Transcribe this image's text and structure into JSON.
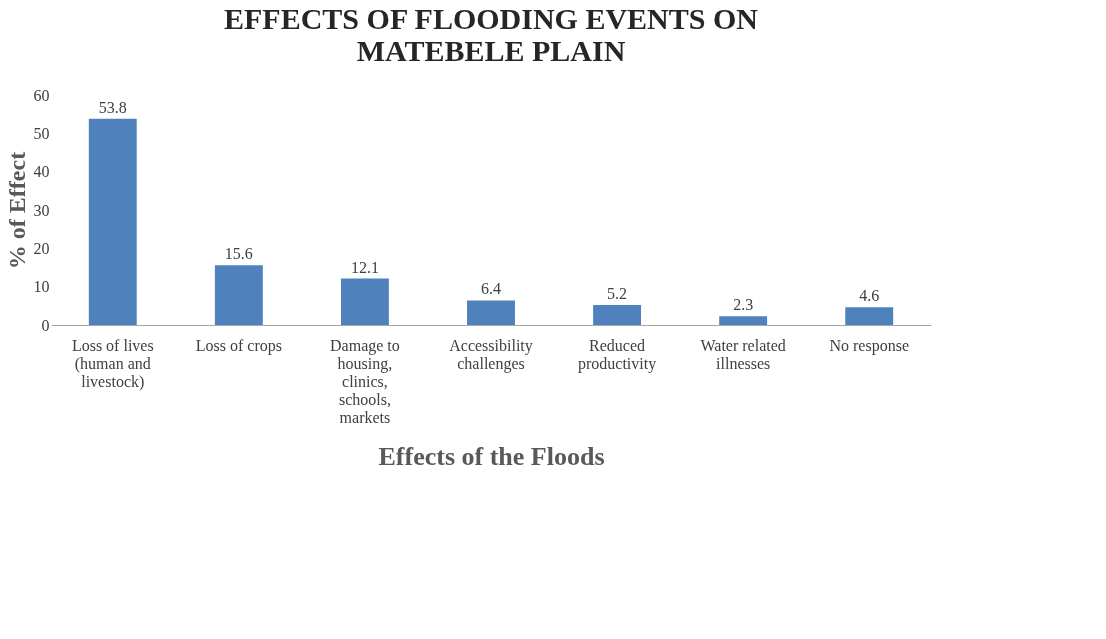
{
  "chart_data": {
    "type": "bar",
    "title": "EFFECTS OF FLOODING EVENTS ON MATEBELE PLAIN",
    "xlabel": "Effects of the Floods",
    "ylabel": "% of Effect",
    "categories": [
      "Loss of lives (human and livestock)",
      "Loss of crops",
      "Damage to housing, clinics, schools, markets",
      "Accessibility challenges",
      "Reduced productivity",
      "Water related illnesses",
      "No response"
    ],
    "values": [
      53.8,
      15.6,
      12.1,
      6.4,
      5.2,
      2.3,
      4.6
    ],
    "color": "#4f81bd",
    "ylim": [
      0,
      60
    ],
    "yticks": [
      0,
      10,
      20,
      30,
      40,
      50,
      60
    ],
    "grid": false,
    "data_labels": true
  }
}
